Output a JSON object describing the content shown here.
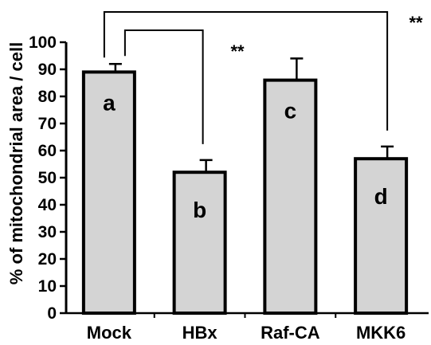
{
  "chart_data": {
    "type": "bar",
    "categories": [
      "Mock",
      "HBx",
      "Raf-CA",
      "MKK6"
    ],
    "values": [
      89,
      52,
      86,
      57
    ],
    "errors": [
      3,
      4.5,
      8,
      4.5
    ],
    "bar_letters": [
      "a",
      "b",
      "c",
      "d"
    ],
    "ylabel": "% of mitochondrial area / cell",
    "ylim": [
      0,
      100
    ],
    "yticks": [
      "0",
      "10",
      "20",
      "30",
      "40",
      "50",
      "60",
      "70",
      "80",
      "90",
      "100"
    ],
    "bar_color": "#d4d4d4",
    "significance": [
      {
        "from": "Mock",
        "to": "HBx",
        "label": "**"
      },
      {
        "from": "Mock",
        "to": "MKK6",
        "label": "**"
      }
    ]
  }
}
